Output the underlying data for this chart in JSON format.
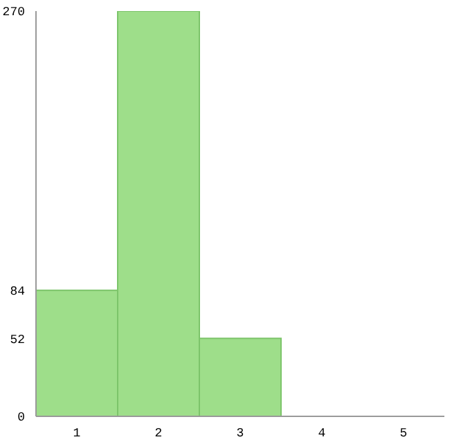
{
  "chart_data": {
    "type": "bar",
    "categories": [
      "1",
      "2",
      "3",
      "4",
      "5"
    ],
    "values": [
      84,
      270,
      52,
      0,
      0
    ],
    "color": "#9ede8a",
    "ylim": [
      0,
      270
    ],
    "yticks": [
      0,
      52,
      84,
      270
    ],
    "grid": false
  }
}
